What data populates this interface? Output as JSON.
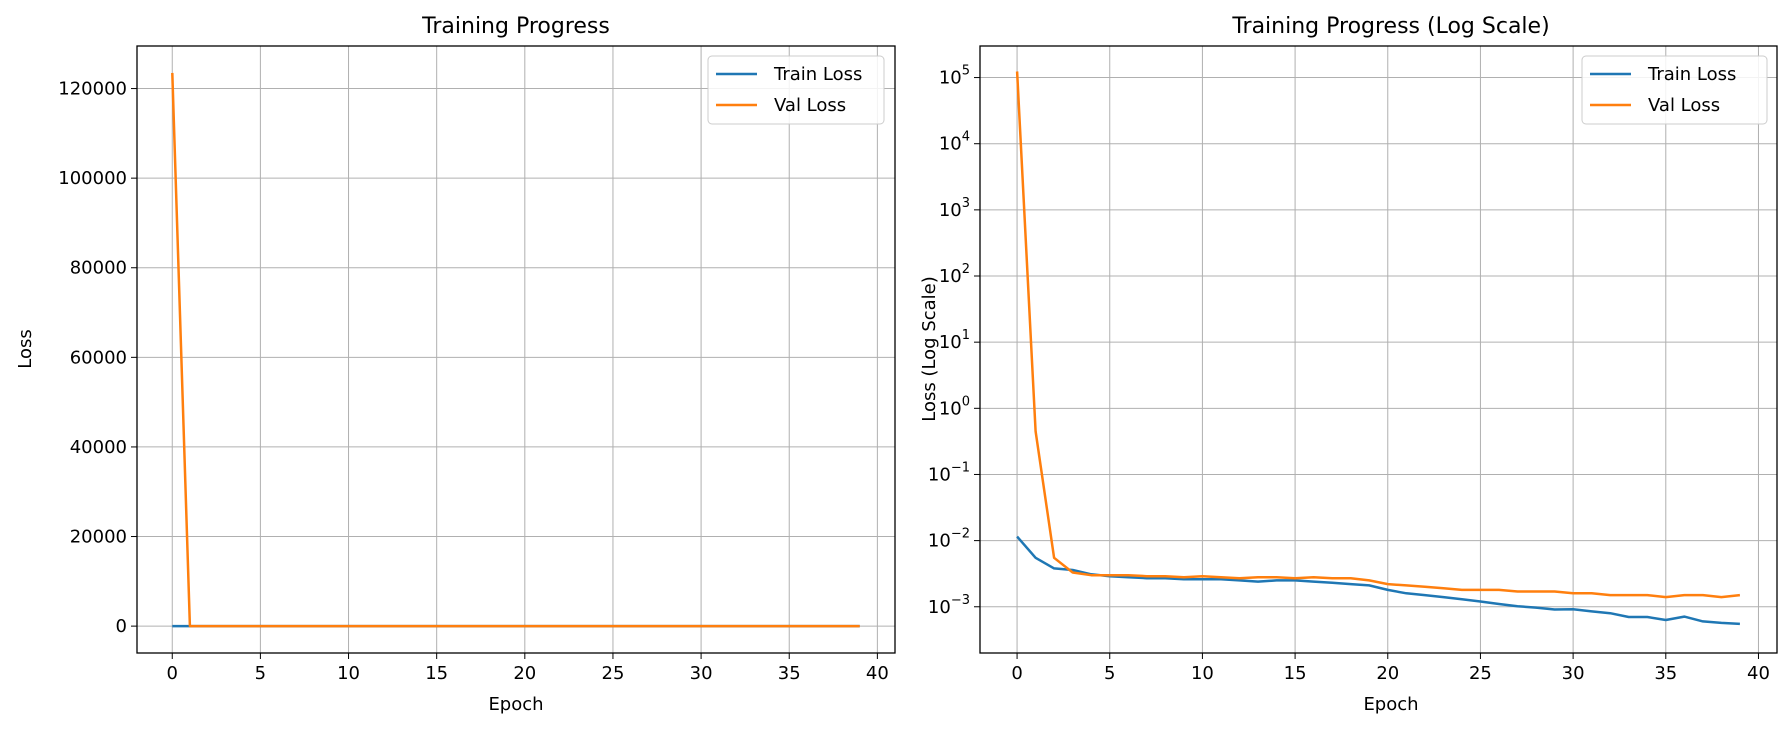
{
  "chart_data": [
    {
      "type": "line",
      "title": "Training Progress",
      "xlabel": "Epoch",
      "ylabel": "Loss",
      "yscale": "linear",
      "xlim": [
        -2,
        41
      ],
      "ylim": [
        -6000,
        129500
      ],
      "xticks": [
        0,
        5,
        10,
        15,
        20,
        25,
        30,
        35,
        40
      ],
      "yticks": [
        0,
        20000,
        40000,
        60000,
        80000,
        100000,
        120000
      ],
      "ytick_labels": [
        "0",
        "20000",
        "40000",
        "60000",
        "80000",
        "100000",
        "120000"
      ],
      "grid": true,
      "legend_position": "top-right",
      "series": [
        {
          "name": "Train Loss",
          "color": "#1f77b4",
          "x": [
            0,
            1,
            2,
            3,
            4,
            5,
            6,
            7,
            8,
            9,
            10,
            11,
            12,
            13,
            14,
            15,
            16,
            17,
            18,
            19,
            20,
            21,
            22,
            23,
            24,
            25,
            26,
            27,
            28,
            29,
            30,
            31,
            32,
            33,
            34,
            35,
            36,
            37,
            38,
            39
          ],
          "y": [
            0.0115,
            0.0055,
            0.0038,
            0.0036,
            0.0031,
            0.0029,
            0.0028,
            0.0027,
            0.0027,
            0.0026,
            0.0026,
            0.0026,
            0.0025,
            0.0024,
            0.0025,
            0.0025,
            0.0024,
            0.0023,
            0.0022,
            0.0021,
            0.0018,
            0.0016,
            0.0015,
            0.0014,
            0.0013,
            0.0012,
            0.0011,
            0.00102,
            0.00097,
            0.00091,
            0.00092,
            0.00085,
            0.0008,
            0.0007,
            0.0007,
            0.00063,
            0.00071,
            0.0006,
            0.00057,
            0.00055
          ]
        },
        {
          "name": "Val Loss",
          "color": "#ff7f0e",
          "x": [
            0,
            1,
            2,
            3,
            4,
            5,
            6,
            7,
            8,
            9,
            10,
            11,
            12,
            13,
            14,
            15,
            16,
            17,
            18,
            19,
            20,
            21,
            22,
            23,
            24,
            25,
            26,
            27,
            28,
            29,
            30,
            31,
            32,
            33,
            34,
            35,
            36,
            37,
            38,
            39
          ],
          "y": [
            123500,
            0.45,
            0.0055,
            0.0033,
            0.003,
            0.003,
            0.003,
            0.0029,
            0.0029,
            0.0028,
            0.0029,
            0.0028,
            0.0027,
            0.0028,
            0.0028,
            0.0027,
            0.0028,
            0.0027,
            0.0027,
            0.0025,
            0.0022,
            0.0021,
            0.002,
            0.0019,
            0.0018,
            0.0018,
            0.0018,
            0.0017,
            0.0017,
            0.0017,
            0.0016,
            0.0016,
            0.0015,
            0.0015,
            0.0015,
            0.0014,
            0.0015,
            0.0015,
            0.0014,
            0.0015
          ]
        }
      ]
    },
    {
      "type": "line",
      "title": "Training Progress (Log Scale)",
      "xlabel": "Epoch",
      "ylabel": "Loss (Log Scale)",
      "yscale": "log",
      "xlim": [
        -2,
        41
      ],
      "ylim": [
        0.0002,
        300000
      ],
      "xticks": [
        0,
        5,
        10,
        15,
        20,
        25,
        30,
        35,
        40
      ],
      "yticks": [
        0.001,
        0.01,
        0.1,
        1,
        10,
        100,
        1000,
        10000,
        100000
      ],
      "ytick_exponents": [
        "−3",
        "−2",
        "−1",
        "0",
        "1",
        "2",
        "3",
        "4",
        "5"
      ],
      "grid": true,
      "legend_position": "top-right",
      "series": [
        {
          "name": "Train Loss",
          "color": "#1f77b4",
          "x": [
            0,
            1,
            2,
            3,
            4,
            5,
            6,
            7,
            8,
            9,
            10,
            11,
            12,
            13,
            14,
            15,
            16,
            17,
            18,
            19,
            20,
            21,
            22,
            23,
            24,
            25,
            26,
            27,
            28,
            29,
            30,
            31,
            32,
            33,
            34,
            35,
            36,
            37,
            38,
            39
          ],
          "y": [
            0.0115,
            0.0055,
            0.0038,
            0.0036,
            0.0031,
            0.0029,
            0.0028,
            0.0027,
            0.0027,
            0.0026,
            0.0026,
            0.0026,
            0.0025,
            0.0024,
            0.0025,
            0.0025,
            0.0024,
            0.0023,
            0.0022,
            0.0021,
            0.0018,
            0.0016,
            0.0015,
            0.0014,
            0.0013,
            0.0012,
            0.0011,
            0.00102,
            0.00097,
            0.00091,
            0.00092,
            0.00085,
            0.0008,
            0.0007,
            0.0007,
            0.00063,
            0.00071,
            0.0006,
            0.00057,
            0.00055
          ]
        },
        {
          "name": "Val Loss",
          "color": "#ff7f0e",
          "x": [
            0,
            1,
            2,
            3,
            4,
            5,
            6,
            7,
            8,
            9,
            10,
            11,
            12,
            13,
            14,
            15,
            16,
            17,
            18,
            19,
            20,
            21,
            22,
            23,
            24,
            25,
            26,
            27,
            28,
            29,
            30,
            31,
            32,
            33,
            34,
            35,
            36,
            37,
            38,
            39
          ],
          "y": [
            123500,
            0.45,
            0.0055,
            0.0033,
            0.003,
            0.003,
            0.003,
            0.0029,
            0.0029,
            0.0028,
            0.0029,
            0.0028,
            0.0027,
            0.0028,
            0.0028,
            0.0027,
            0.0028,
            0.0027,
            0.0027,
            0.0025,
            0.0022,
            0.0021,
            0.002,
            0.0019,
            0.0018,
            0.0018,
            0.0018,
            0.0017,
            0.0017,
            0.0017,
            0.0016,
            0.0016,
            0.0015,
            0.0015,
            0.0015,
            0.0014,
            0.0015,
            0.0015,
            0.0014,
            0.0015
          ]
        }
      ]
    }
  ]
}
